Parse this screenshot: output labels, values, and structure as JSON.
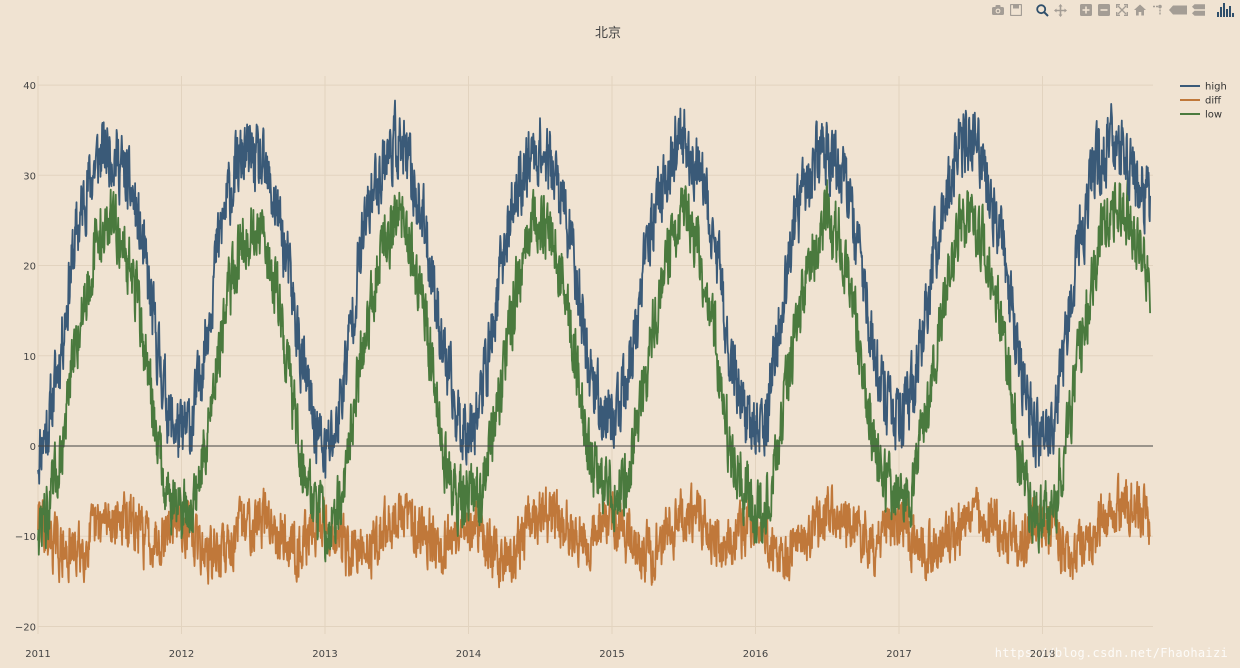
{
  "modebar": {
    "items": [
      {
        "icon": "camera-icon"
      },
      {
        "icon": "save-icon"
      },
      {
        "icon": "zoom-icon"
      },
      {
        "icon": "pan-icon"
      },
      {
        "icon": "zoom-in-icon"
      },
      {
        "icon": "zoom-out-icon"
      },
      {
        "icon": "autoscale-icon"
      },
      {
        "icon": "home-icon"
      },
      {
        "icon": "spike-lines-icon"
      },
      {
        "icon": "hover-closest-icon"
      },
      {
        "icon": "hover-compare-icon"
      },
      {
        "icon": "plotly-logo-icon"
      }
    ],
    "active_color": "#2f4f6b",
    "idle_color": "#a49d95"
  },
  "watermark": "https://blog.csdn.net/Fhaohaizi",
  "chart_data": {
    "type": "line",
    "title": "北京",
    "xlabel": "",
    "ylabel": "",
    "xlim": [
      2011.0,
      2018.77
    ],
    "ylim": [
      -21.5,
      43
    ],
    "x_tick_values": [
      2011,
      2012,
      2013,
      2014,
      2015,
      2016,
      2017,
      2018
    ],
    "x_tick_labels": [
      "2011",
      "2012",
      "2013",
      "2014",
      "2015",
      "2016",
      "2017",
      "2018"
    ],
    "y_tick_values": [
      -20,
      -10,
      0,
      10,
      20,
      30,
      40
    ],
    "y_tick_labels": [
      "−20",
      "−10",
      "0",
      "10",
      "20",
      "30",
      "40"
    ],
    "grid": true,
    "zeroline": true,
    "legend_position": "top-right",
    "daily_noise": {
      "high": 3.2,
      "low": 3.0,
      "diff": 2.6
    },
    "series": [
      {
        "name": "high",
        "color": "#3a5a78",
        "x": [
          2011.0,
          2011.08,
          2011.17,
          2011.25,
          2011.33,
          2011.42,
          2011.5,
          2011.58,
          2011.67,
          2011.75,
          2011.83,
          2011.92,
          2012.0,
          2012.08,
          2012.17,
          2012.25,
          2012.33,
          2012.42,
          2012.5,
          2012.58,
          2012.67,
          2012.75,
          2012.83,
          2012.92,
          2013.0,
          2013.08,
          2013.17,
          2013.25,
          2013.33,
          2013.42,
          2013.5,
          2013.58,
          2013.67,
          2013.75,
          2013.83,
          2013.92,
          2014.0,
          2014.08,
          2014.17,
          2014.25,
          2014.33,
          2014.42,
          2014.5,
          2014.58,
          2014.67,
          2014.75,
          2014.83,
          2014.92,
          2015.0,
          2015.08,
          2015.17,
          2015.25,
          2015.33,
          2015.42,
          2015.5,
          2015.58,
          2015.67,
          2015.75,
          2015.83,
          2015.92,
          2016.0,
          2016.08,
          2016.17,
          2016.25,
          2016.33,
          2016.42,
          2016.5,
          2016.58,
          2016.67,
          2016.75,
          2016.83,
          2016.92,
          2017.0,
          2017.08,
          2017.17,
          2017.25,
          2017.33,
          2017.42,
          2017.5,
          2017.58,
          2017.67,
          2017.75,
          2017.83,
          2017.92,
          2018.0,
          2018.08,
          2018.17,
          2018.25,
          2018.33,
          2018.42,
          2018.5,
          2018.58,
          2018.67,
          2018.75
        ],
        "values": [
          -1,
          3,
          12,
          22,
          28,
          32,
          33,
          31,
          27,
          20,
          11,
          3,
          1,
          3,
          12,
          22,
          28,
          32,
          32,
          30,
          26,
          19,
          10,
          3,
          -1,
          2,
          12,
          22,
          28,
          32,
          34,
          31,
          26,
          19,
          10,
          3,
          2,
          5,
          13,
          22,
          28,
          32,
          33,
          31,
          26,
          19,
          10,
          4,
          3,
          5,
          13,
          22,
          28,
          32,
          34,
          31,
          26,
          19,
          10,
          4,
          1,
          4,
          13,
          22,
          28,
          32,
          33,
          31,
          26,
          19,
          10,
          4,
          2,
          5,
          13,
          22,
          28,
          33,
          34,
          31,
          26,
          19,
          10,
          3,
          0,
          3,
          13,
          22,
          28,
          33,
          34,
          32,
          29,
          27
        ]
      },
      {
        "name": "diff",
        "color": "#c0783a",
        "x": [
          2011.0,
          2011.08,
          2011.17,
          2011.25,
          2011.33,
          2011.42,
          2011.5,
          2011.58,
          2011.67,
          2011.75,
          2011.83,
          2011.92,
          2012.0,
          2012.08,
          2012.17,
          2012.25,
          2012.33,
          2012.42,
          2012.5,
          2012.58,
          2012.67,
          2012.75,
          2012.83,
          2012.92,
          2013.0,
          2013.08,
          2013.17,
          2013.25,
          2013.33,
          2013.42,
          2013.5,
          2013.58,
          2013.67,
          2013.75,
          2013.83,
          2013.92,
          2014.0,
          2014.08,
          2014.17,
          2014.25,
          2014.33,
          2014.42,
          2014.5,
          2014.58,
          2014.67,
          2014.75,
          2014.83,
          2014.92,
          2015.0,
          2015.08,
          2015.17,
          2015.25,
          2015.33,
          2015.42,
          2015.5,
          2015.58,
          2015.67,
          2015.75,
          2015.83,
          2015.92,
          2016.0,
          2016.08,
          2016.17,
          2016.25,
          2016.33,
          2016.42,
          2016.5,
          2016.58,
          2016.67,
          2016.75,
          2016.83,
          2016.92,
          2017.0,
          2017.08,
          2017.17,
          2017.25,
          2017.33,
          2017.42,
          2017.5,
          2017.58,
          2017.67,
          2017.75,
          2017.83,
          2017.92,
          2018.0,
          2018.08,
          2018.17,
          2018.25,
          2018.33,
          2018.42,
          2018.5,
          2018.58,
          2018.67,
          2018.75
        ],
        "values": [
          -8,
          -10,
          -12,
          -12,
          -11,
          -9,
          -8,
          -8,
          -9,
          -10,
          -10,
          -9,
          -8,
          -10,
          -12,
          -12,
          -11,
          -9,
          -8,
          -8,
          -9,
          -11,
          -11,
          -9,
          -8,
          -10,
          -12,
          -12,
          -11,
          -9,
          -8,
          -8,
          -9,
          -10,
          -11,
          -9,
          -8,
          -10,
          -12,
          -13,
          -11,
          -9,
          -8,
          -8,
          -9,
          -10,
          -11,
          -9,
          -8,
          -10,
          -11,
          -12,
          -11,
          -9,
          -8,
          -8,
          -9,
          -11,
          -11,
          -9,
          -8,
          -10,
          -12,
          -12,
          -11,
          -9,
          -8,
          -8,
          -9,
          -10,
          -11,
          -9,
          -8,
          -10,
          -12,
          -12,
          -11,
          -9,
          -8,
          -8,
          -9,
          -10,
          -11,
          -9,
          -8,
          -10,
          -12,
          -12,
          -11,
          -8,
          -7,
          -6,
          -7,
          -9
        ]
      },
      {
        "name": "low",
        "color": "#4a7a3e",
        "x": [
          2011.0,
          2011.08,
          2011.17,
          2011.25,
          2011.33,
          2011.42,
          2011.5,
          2011.58,
          2011.67,
          2011.75,
          2011.83,
          2011.92,
          2012.0,
          2012.08,
          2012.17,
          2012.25,
          2012.33,
          2012.42,
          2012.5,
          2012.58,
          2012.67,
          2012.75,
          2012.83,
          2012.92,
          2013.0,
          2013.08,
          2013.17,
          2013.25,
          2013.33,
          2013.42,
          2013.5,
          2013.58,
          2013.67,
          2013.75,
          2013.83,
          2013.92,
          2014.0,
          2014.08,
          2014.17,
          2014.25,
          2014.33,
          2014.42,
          2014.5,
          2014.58,
          2014.67,
          2014.75,
          2014.83,
          2014.92,
          2015.0,
          2015.08,
          2015.17,
          2015.25,
          2015.33,
          2015.42,
          2015.5,
          2015.58,
          2015.67,
          2015.75,
          2015.83,
          2015.92,
          2016.0,
          2016.08,
          2016.17,
          2016.25,
          2016.33,
          2016.42,
          2016.5,
          2016.58,
          2016.67,
          2016.75,
          2016.83,
          2016.92,
          2017.0,
          2017.08,
          2017.17,
          2017.25,
          2017.33,
          2017.42,
          2017.5,
          2017.58,
          2017.67,
          2017.75,
          2017.83,
          2017.92,
          2018.0,
          2018.08,
          2018.17,
          2018.25,
          2018.33,
          2018.42,
          2018.5,
          2018.58,
          2018.67,
          2018.75
        ],
        "values": [
          -9,
          -7,
          0,
          10,
          17,
          23,
          25,
          23,
          18,
          10,
          1,
          -6,
          -7,
          -7,
          0,
          10,
          17,
          23,
          24,
          22,
          17,
          8,
          -1,
          -6,
          -9,
          -8,
          0,
          10,
          17,
          23,
          26,
          23,
          17,
          9,
          -1,
          -6,
          -6,
          -5,
          1,
          9,
          17,
          23,
          25,
          23,
          17,
          9,
          -1,
          -5,
          -5,
          -5,
          2,
          10,
          17,
          23,
          26,
          23,
          17,
          8,
          -1,
          -5,
          -7,
          -6,
          1,
          10,
          17,
          23,
          25,
          23,
          17,
          9,
          -1,
          -5,
          -6,
          -5,
          1,
          10,
          17,
          24,
          26,
          23,
          17,
          9,
          -1,
          -6,
          -8,
          -7,
          1,
          10,
          17,
          25,
          27,
          26,
          22,
          18
        ]
      }
    ]
  }
}
